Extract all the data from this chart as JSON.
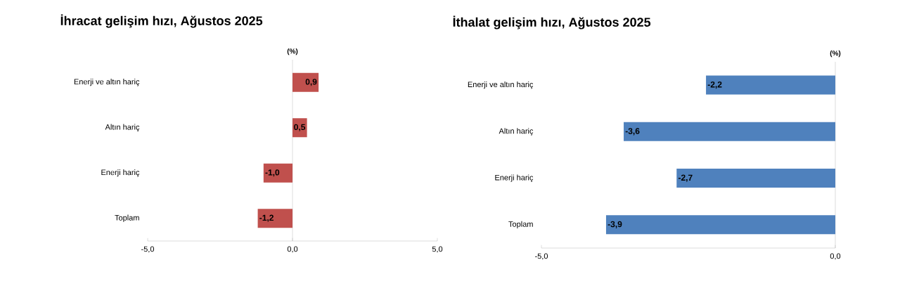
{
  "chart_data": [
    {
      "type": "bar",
      "orientation": "horizontal",
      "title": "İhracat gelişim hızı, Ağustos 2025",
      "categories": [
        "Enerji ve altın hariç",
        "Altın hariç",
        "Enerji hariç",
        "Toplam"
      ],
      "values": [
        0.9,
        0.5,
        -1.0,
        -1.2
      ],
      "value_labels": [
        "0,9",
        "0,5",
        "-1,0",
        "-1,2"
      ],
      "color": "#c0504d",
      "xlim": [
        -5,
        5
      ],
      "xticks": [
        {
          "value": -5,
          "label": "-5,0"
        },
        {
          "value": 0,
          "label": "0,0"
        },
        {
          "value": 5,
          "label": "5,0"
        }
      ],
      "annotations": [
        "(%)"
      ]
    },
    {
      "type": "bar",
      "orientation": "horizontal",
      "title": "İthalat gelişim hızı, Ağustos 2025",
      "categories": [
        "Enerji ve altın hariç",
        "Altın hariç",
        "Enerji hariç",
        "Toplam"
      ],
      "values": [
        -2.2,
        -3.6,
        -2.7,
        -3.9
      ],
      "value_labels": [
        "-2,2",
        "-3,6",
        "-2,7",
        "-3,9"
      ],
      "color": "#4f81bd",
      "xlim": [
        -5,
        0
      ],
      "xticks": [
        {
          "value": -5,
          "label": "-5,0"
        },
        {
          "value": 0,
          "label": "0,0"
        }
      ],
      "annotations": [
        "(%)"
      ]
    }
  ]
}
